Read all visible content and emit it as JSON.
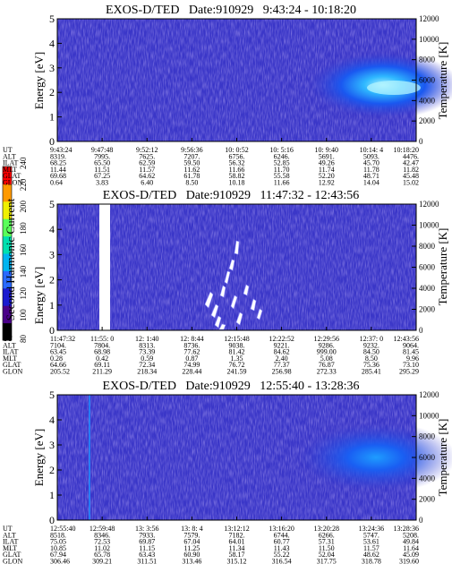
{
  "colorbar": {
    "label": "Second Harmonic Current",
    "ticks": [
      "80",
      "100",
      "120",
      "140",
      "160",
      "180",
      "200",
      "220",
      "240"
    ],
    "colors": [
      "#000000",
      "#4a0088",
      "#1a1ad0",
      "#2a6aff",
      "#00b4f0",
      "#00e0b0",
      "#5aff5a",
      "#f0f000",
      "#ff9a00",
      "#ff0000"
    ]
  },
  "chart_data": [
    {
      "type": "heatmap",
      "title": "EXOS-D/TED   Date:910929   9:43:24 - 10:18:20",
      "ylabel": "Energy [eV]",
      "ylabel_right": "Temperature [K]",
      "ylim": [
        0,
        5
      ],
      "ylim_right": [
        0,
        12000
      ],
      "yticks": [
        "0",
        "1",
        "2",
        "3",
        "4",
        "5"
      ],
      "yticks_right": [
        "0",
        "2000",
        "4000",
        "6000",
        "8000",
        "10000",
        "12000"
      ],
      "ephemeris": [
        {
          "name": "UT",
          "values": [
            "9:43:24",
            "9:47:48",
            "9:52:12",
            "9:56:36",
            "10: 0:52",
            "10: 5:16",
            "10: 9:40",
            "10:14: 4",
            "10:18:20"
          ]
        },
        {
          "name": "ALT",
          "values": [
            "8319.",
            "7995.",
            "7625.",
            "7207.",
            "6756.",
            "6246.",
            "5691.",
            "5093.",
            "4476."
          ]
        },
        {
          "name": "ILAT",
          "values": [
            "68.25",
            "65.50",
            "62.59",
            "59.50",
            "56.32",
            "52.85",
            "49.26",
            "45.70",
            "42.47"
          ]
        },
        {
          "name": "MLT",
          "values": [
            "11.44",
            "11.51",
            "11.57",
            "11.62",
            "11.66",
            "11.70",
            "11.74",
            "11.78",
            "11.82"
          ]
        },
        {
          "name": "GLAT",
          "values": [
            "69.68",
            "67.25",
            "64.62",
            "61.78",
            "58.82",
            "55.58",
            "52.20",
            "48.71",
            "45.48"
          ]
        },
        {
          "name": "GLON",
          "values": [
            "0.64",
            "3.83",
            "6.40",
            "8.50",
            "10.18",
            "11.66",
            "12.92",
            "14.04",
            "15.02"
          ]
        }
      ]
    },
    {
      "type": "heatmap",
      "title": "EXOS-D/TED   Date:910929   11:47:32 - 12:43:56",
      "ylabel": "Energy [eV]",
      "ylabel_right": "Temperature [K]",
      "ylim": [
        0,
        5
      ],
      "ylim_right": [
        0,
        12000
      ],
      "yticks": [
        "0",
        "1",
        "2",
        "3",
        "4",
        "5"
      ],
      "yticks_right": [
        "0",
        "2000",
        "4000",
        "6000",
        "8000",
        "10000",
        "12000"
      ],
      "ephemeris": [
        {
          "name": "UT",
          "values": [
            "11:47:32",
            "11:55: 0",
            "12: 1:40",
            "12: 8:44",
            "12:15:48",
            "12:22:52",
            "12:29:56",
            "12:37: 0",
            "12:43:56"
          ]
        },
        {
          "name": "ALT",
          "values": [
            "7104.",
            "7804.",
            "8313.",
            "8736.",
            "9038.",
            "9221.",
            "9286.",
            "9232.",
            "9064."
          ]
        },
        {
          "name": "ILAT",
          "values": [
            "63.45",
            "68.98",
            "73.39",
            "77.62",
            "81.42",
            "84.62",
            "999.00",
            "84.50",
            "81.45"
          ]
        },
        {
          "name": "MLT",
          "values": [
            "0.28",
            "0.42",
            "0.59",
            "0.87",
            "1.35",
            "2.40",
            "5.08",
            "8.50",
            "9.96"
          ]
        },
        {
          "name": "GLAT",
          "values": [
            "64.66",
            "69.11",
            "72.34",
            "74.99",
            "76.72",
            "77.37",
            "76.87",
            "75.36",
            "73.10"
          ]
        },
        {
          "name": "GLON",
          "values": [
            "205.52",
            "211.29",
            "218.34",
            "228.44",
            "241.59",
            "256.98",
            "272.33",
            "285.41",
            "295.29"
          ]
        }
      ]
    },
    {
      "type": "heatmap",
      "title": "EXOS-D/TED   Date:910929   12:55:40 - 13:28:36",
      "ylabel": "Energy [eV]",
      "ylabel_right": "Temperature [K]",
      "ylim": [
        0,
        5
      ],
      "ylim_right": [
        0,
        12000
      ],
      "yticks": [
        "0",
        "1",
        "2",
        "3",
        "4",
        "5"
      ],
      "yticks_right": [
        "0",
        "2000",
        "4000",
        "6000",
        "8000",
        "10000",
        "12000"
      ],
      "ephemeris": [
        {
          "name": "UT",
          "values": [
            "12:55:40",
            "12:59:48",
            "13: 3:56",
            "13: 8: 4",
            "13:12:12",
            "13:16:20",
            "13:20:28",
            "13:24:36",
            "13:28:36"
          ]
        },
        {
          "name": "ALT",
          "values": [
            "8518.",
            "8346.",
            "7933.",
            "7579.",
            "7182.",
            "6744.",
            "6266.",
            "5747.",
            "5208."
          ]
        },
        {
          "name": "ILAT",
          "values": [
            "75.05",
            "72.53",
            "69.87",
            "67.04",
            "64.01",
            "60.77",
            "57.31",
            "53.61",
            "49.84"
          ]
        },
        {
          "name": "MLT",
          "values": [
            "10.85",
            "11.02",
            "11.15",
            "11.25",
            "11.34",
            "11.43",
            "11.50",
            "11.57",
            "11.64"
          ]
        },
        {
          "name": "GLAT",
          "values": [
            "67.94",
            "65.78",
            "63.43",
            "60.90",
            "58.17",
            "55.22",
            "52.04",
            "48.62",
            "45.09"
          ]
        },
        {
          "name": "GLON",
          "values": [
            "306.46",
            "309.21",
            "311.51",
            "313.46",
            "315.12",
            "316.54",
            "317.75",
            "318.78",
            "319.60"
          ]
        }
      ]
    }
  ]
}
